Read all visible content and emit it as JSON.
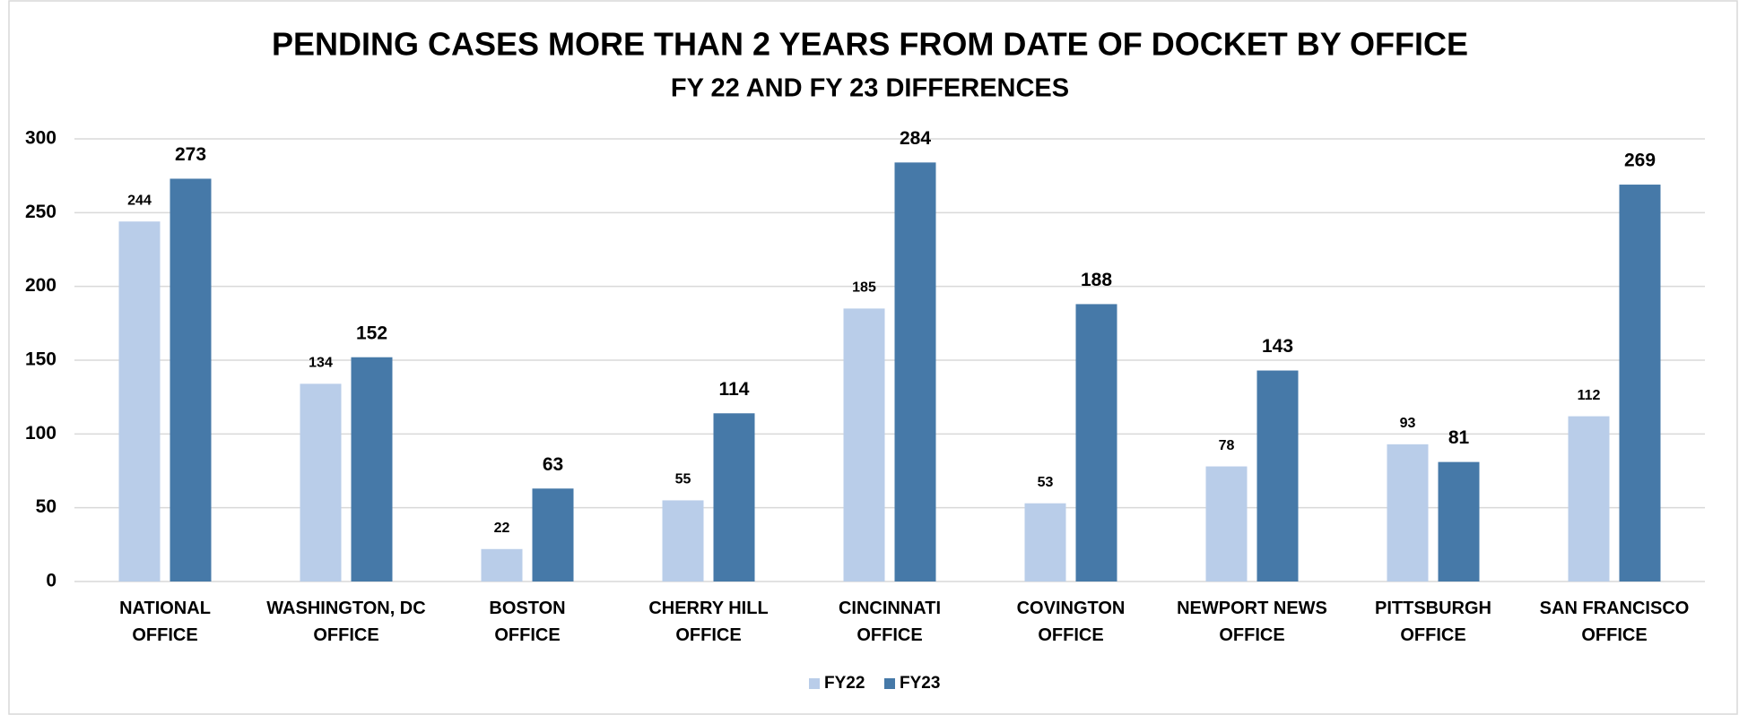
{
  "chart_data": {
    "type": "bar",
    "title": "PENDING CASES MORE THAN 2 YEARS FROM DATE OF DOCKET BY OFFICE",
    "subtitle": "FY 22 AND FY 23 DIFFERENCES",
    "categories": [
      "NATIONAL OFFICE",
      "WASHINGTON, DC OFFICE",
      "BOSTON OFFICE",
      "CHERRY HILL OFFICE",
      "CINCINNATI OFFICE",
      "COVINGTON OFFICE",
      "NEWPORT NEWS OFFICE",
      "PITTSBURGH OFFICE",
      "SAN FRANCISCO OFFICE"
    ],
    "series": [
      {
        "name": "FY22",
        "color": "#b9cde9",
        "values": [
          244,
          134,
          22,
          55,
          185,
          53,
          78,
          93,
          112
        ]
      },
      {
        "name": "FY23",
        "color": "#4679a8",
        "values": [
          273,
          152,
          63,
          114,
          284,
          188,
          143,
          81,
          269
        ]
      }
    ],
    "ylim": [
      0,
      300
    ],
    "yticks": [
      0,
      50,
      100,
      150,
      200,
      250,
      300
    ],
    "grid": true,
    "legend": "bottom"
  }
}
